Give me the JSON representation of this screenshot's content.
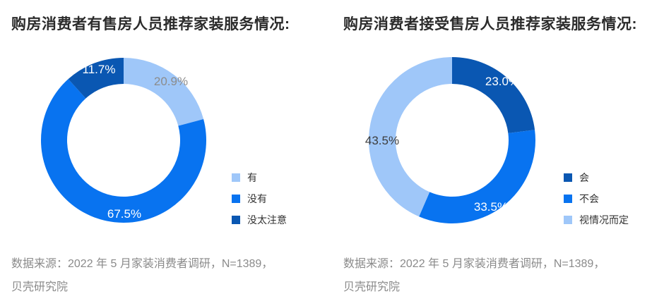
{
  "page": {
    "background": "#ffffff"
  },
  "chart_data": [
    {
      "type": "pie",
      "donut": true,
      "title": "购房消费者有售房人员推荐家装服务情况:",
      "start_angle_deg": 0,
      "direction": "clockwise",
      "legend_position": "right",
      "segments": [
        {
          "label": "有",
          "value": 20.9,
          "display": "20.9%",
          "color": "#9fc7f9",
          "label_color": "#8c8c8c"
        },
        {
          "label": "没有",
          "value": 67.5,
          "display": "67.5%",
          "color": "#0873f0",
          "label_color": "#ffffff"
        },
        {
          "label": "没太注意",
          "value": 11.7,
          "display": "11.7%",
          "color": "#0a57b2",
          "label_color": "#ffffff"
        }
      ],
      "source_lines": [
        "数据来源：2022 年 5 月家装消费者调研，N=1389，",
        "贝壳研究院"
      ]
    },
    {
      "type": "pie",
      "donut": true,
      "title": "购房消费者接受售房人员推荐家装服务情况:",
      "start_angle_deg": 0,
      "direction": "clockwise",
      "legend_position": "right",
      "segments": [
        {
          "label": "会",
          "value": 23.0,
          "display": "23.0%",
          "color": "#0a57b2",
          "label_color": "#ffffff"
        },
        {
          "label": "不会",
          "value": 33.5,
          "display": "33.5%",
          "color": "#0873f0",
          "label_color": "#ffffff"
        },
        {
          "label": "视情况而定",
          "value": 43.5,
          "display": "43.5%",
          "color": "#9fc7f9",
          "label_color": "#3d3d3d"
        }
      ],
      "source_lines": [
        "数据来源：2022 年 5 月家装消费者调研，N=1389，",
        "贝壳研究院"
      ]
    }
  ]
}
